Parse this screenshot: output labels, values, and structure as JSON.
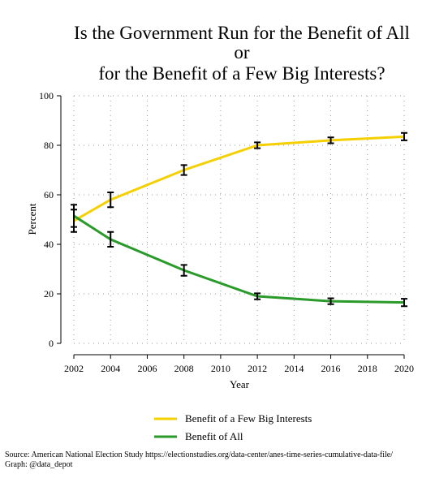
{
  "chart_data": {
    "type": "line",
    "title": [
      "Is the Government Run for the Benefit of All",
      "or",
      "for the Benefit of a Few Big Interests?"
    ],
    "x_label": "Year",
    "y_label": "Percent",
    "x": [
      2002,
      2004,
      2008,
      2012,
      2016,
      2020
    ],
    "series": [
      {
        "name": "Benefit of a Few Big Interests",
        "color": "#f5d000",
        "values": [
          49.5,
          58,
          70,
          80,
          82,
          83.5
        ],
        "errors": [
          4.5,
          3,
          2,
          1.2,
          1.2,
          1.5
        ]
      },
      {
        "name": "Benefit of All",
        "color": "#2a9a2a",
        "values": [
          51.5,
          42,
          29.5,
          19,
          17,
          16.5
        ],
        "errors": [
          4.5,
          3,
          2.2,
          1.2,
          1.2,
          1.5
        ]
      }
    ],
    "xlim": [
      2002,
      2020
    ],
    "xticks": [
      2002,
      2004,
      2006,
      2008,
      2010,
      2012,
      2014,
      2016,
      2018,
      2020
    ],
    "ylim": [
      0,
      100
    ],
    "yticks": [
      0,
      20,
      40,
      60,
      80,
      100
    ],
    "grid": true,
    "source": [
      "Source: American National Election Study https://electionstudies.org/data-center/anes-time-series-cumulative-data-file/",
      "Graph: @data_depot"
    ]
  }
}
